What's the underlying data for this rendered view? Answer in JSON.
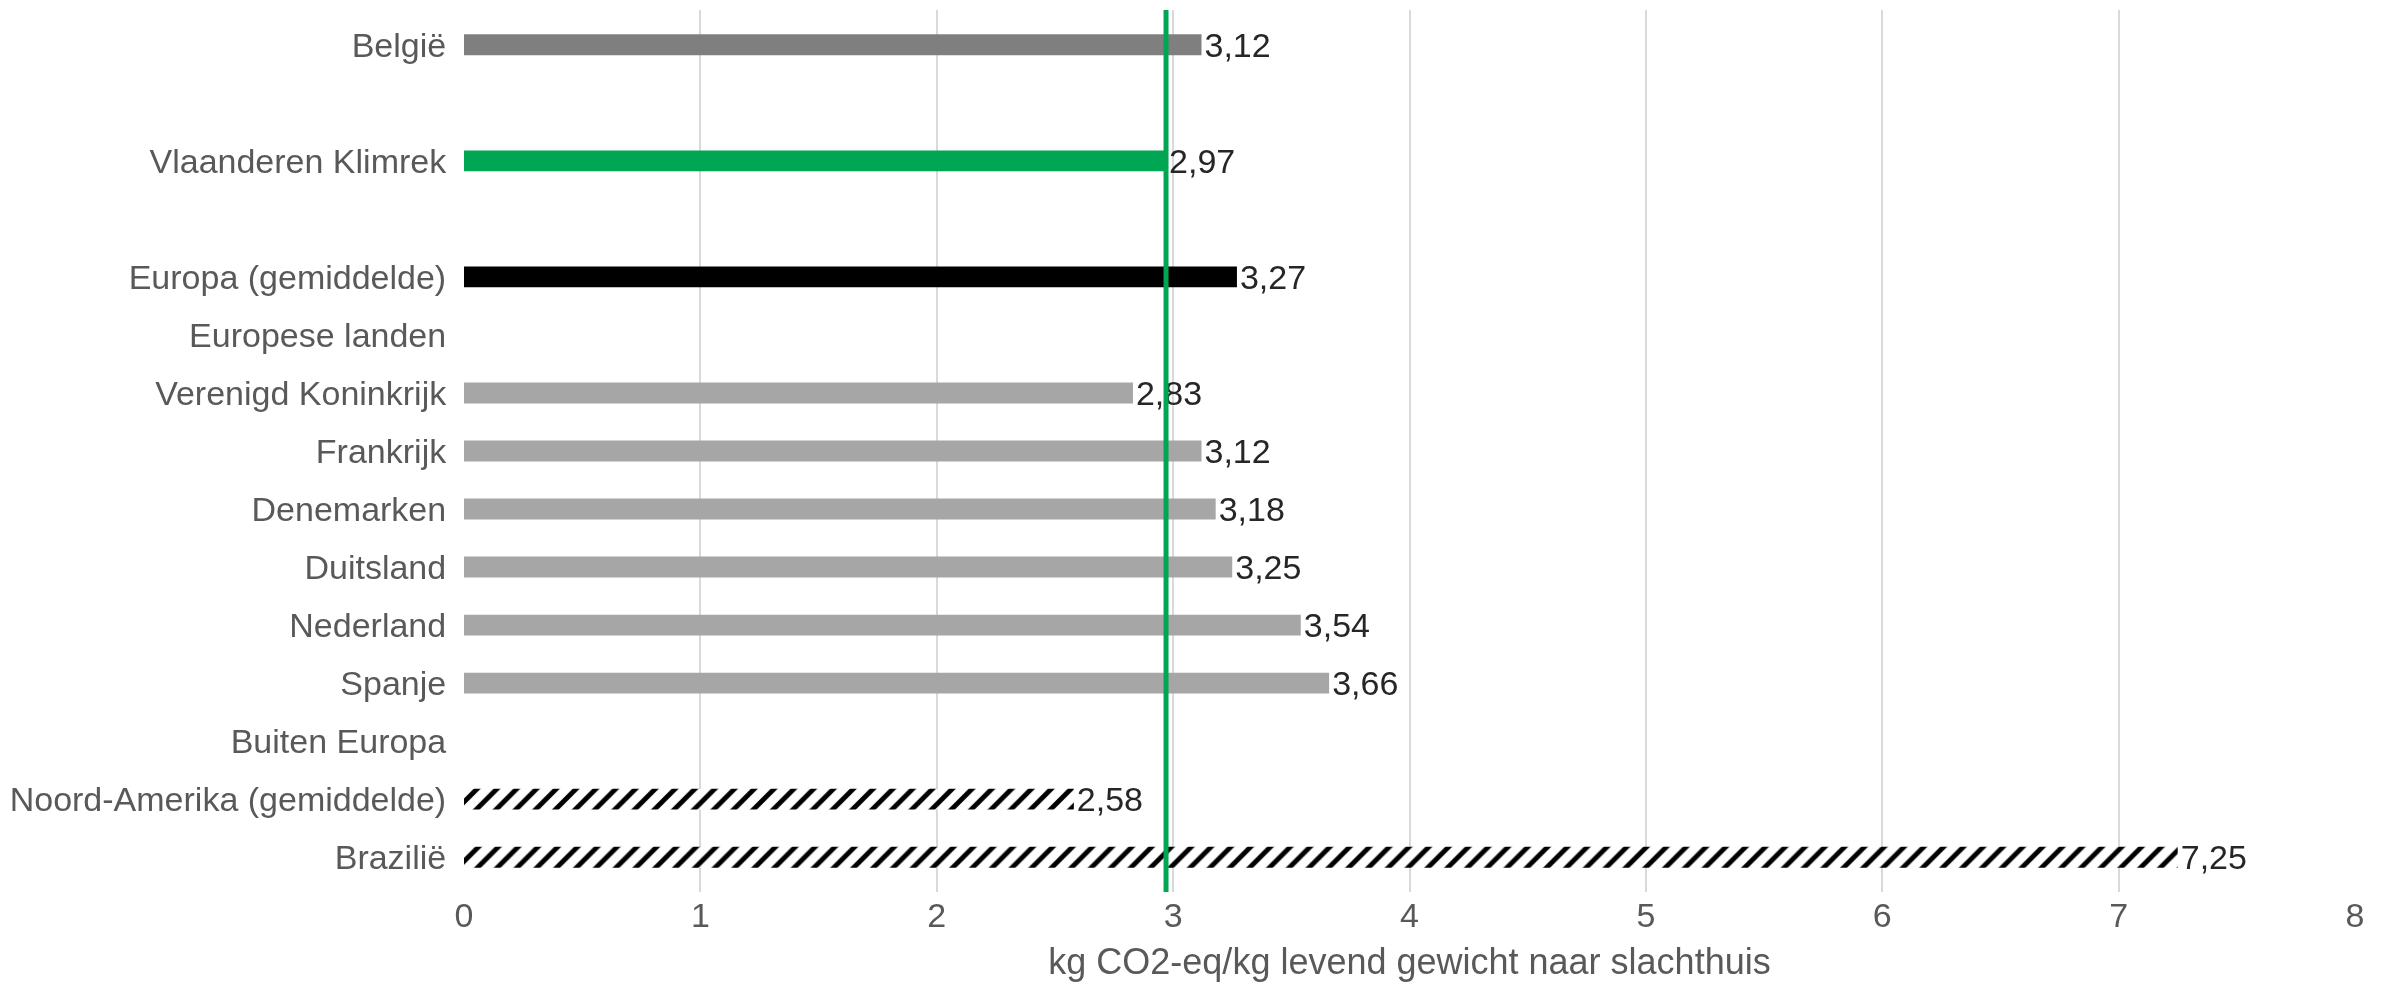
{
  "chart_data": {
    "type": "bar",
    "orientation": "horizontal",
    "xlabel": "kg CO2-eq/kg levend gewicht naar slachthuis",
    "categories": [
      "België",
      null,
      "Vlaanderen Klimrek",
      null,
      "Europa (gemiddelde)",
      "Europese landen",
      "Verenigd Koninkrijk",
      "Frankrijk",
      "Denemarken",
      "Duitsland",
      "Nederland",
      "Spanje",
      "Buiten Europa",
      "Noord-Amerika (gemiddelde)",
      "Brazilië"
    ],
    "series": [
      {
        "colors": [
          "#7f7f7f",
          null,
          "#00a651",
          null,
          "#000000",
          null,
          "#a6a6a6",
          "#a6a6a6",
          "#a6a6a6",
          "#a6a6a6",
          "#a6a6a6",
          "#a6a6a6",
          null,
          null,
          null
        ],
        "values": [
          3.12,
          null,
          2.97,
          null,
          3.27,
          null,
          2.83,
          3.12,
          3.18,
          3.25,
          3.54,
          3.66,
          null,
          null,
          null
        ],
        "value_labels": [
          "3,12",
          null,
          "2,97",
          null,
          "3,27",
          null,
          "2,83",
          "3,12",
          "3,18",
          "3,25",
          "3,54",
          "3,66",
          null,
          null,
          null
        ]
      },
      {
        "color": "#000000",
        "line_style": "dashed",
        "values": [
          null,
          null,
          null,
          null,
          null,
          null,
          null,
          null,
          null,
          null,
          null,
          null,
          null,
          2.58,
          7.25
        ],
        "value_labels": [
          null,
          null,
          null,
          null,
          null,
          null,
          null,
          null,
          null,
          null,
          null,
          null,
          null,
          "2,58",
          "7,25"
        ]
      }
    ],
    "xlim": [
      0,
      8
    ],
    "xticks": [
      0,
      1,
      2,
      3,
      4,
      5,
      6,
      7,
      8
    ],
    "grid": "x",
    "ref_lines": [
      {
        "axis": "x",
        "value": 2.97,
        "color": "#00a651"
      }
    ]
  }
}
